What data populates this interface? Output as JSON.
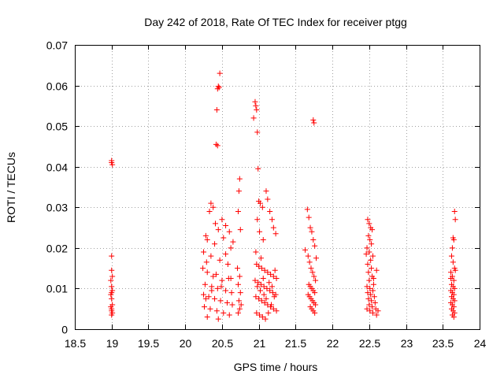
{
  "chart_data": {
    "type": "scatter",
    "title": "Day 242 of 2018, Rate Of TEC Index for receiver ptgg",
    "xlabel": "GPS time / hours",
    "ylabel": "ROTI / TECUs",
    "xlim": [
      18.5,
      24
    ],
    "ylim": [
      0,
      0.07
    ],
    "xticks": [
      "18.5",
      "19",
      "19.5",
      "20",
      "20.5",
      "21",
      "21.5",
      "22",
      "22.5",
      "23",
      "23.5",
      "24"
    ],
    "yticks": [
      "0",
      "0.01",
      "0.02",
      "0.03",
      "0.04",
      "0.05",
      "0.06",
      "0.07"
    ],
    "grid": true,
    "marker": "+",
    "color": "#ff0000",
    "points": [
      [
        19.0,
        0.0415
      ],
      [
        19.0,
        0.041
      ],
      [
        19.01,
        0.0405
      ],
      [
        19.0,
        0.018
      ],
      [
        19.0,
        0.0145
      ],
      [
        19.01,
        0.013
      ],
      [
        18.99,
        0.012
      ],
      [
        19.0,
        0.0105
      ],
      [
        19.01,
        0.0095
      ],
      [
        19.0,
        0.009
      ],
      [
        18.99,
        0.0085
      ],
      [
        19.0,
        0.0075
      ],
      [
        19.01,
        0.006
      ],
      [
        18.99,
        0.0055
      ],
      [
        19.0,
        0.005
      ],
      [
        19.0,
        0.0045
      ],
      [
        19.01,
        0.004
      ],
      [
        19.0,
        0.0035
      ],
      [
        20.47,
        0.063
      ],
      [
        20.45,
        0.0598
      ],
      [
        20.46,
        0.0595
      ],
      [
        20.44,
        0.0592
      ],
      [
        20.43,
        0.054
      ],
      [
        20.42,
        0.0455
      ],
      [
        20.44,
        0.0452
      ],
      [
        20.35,
        0.031
      ],
      [
        20.38,
        0.03
      ],
      [
        20.33,
        0.029
      ],
      [
        20.5,
        0.027
      ],
      [
        20.55,
        0.0255
      ],
      [
        20.45,
        0.0245
      ],
      [
        20.6,
        0.024
      ],
      [
        20.28,
        0.023
      ],
      [
        20.3,
        0.022
      ],
      [
        20.4,
        0.021
      ],
      [
        20.52,
        0.0225
      ],
      [
        20.62,
        0.02
      ],
      [
        20.25,
        0.019
      ],
      [
        20.35,
        0.018
      ],
      [
        20.47,
        0.017
      ],
      [
        20.58,
        0.016
      ],
      [
        20.24,
        0.015
      ],
      [
        20.3,
        0.014
      ],
      [
        20.42,
        0.0135
      ],
      [
        20.5,
        0.012
      ],
      [
        20.62,
        0.0125
      ],
      [
        20.27,
        0.011
      ],
      [
        20.36,
        0.0105
      ],
      [
        20.44,
        0.01
      ],
      [
        20.55,
        0.0095
      ],
      [
        20.63,
        0.009
      ],
      [
        20.25,
        0.0085
      ],
      [
        20.32,
        0.008
      ],
      [
        20.4,
        0.0075
      ],
      [
        20.48,
        0.007
      ],
      [
        20.57,
        0.0065
      ],
      [
        20.64,
        0.006
      ],
      [
        20.26,
        0.0055
      ],
      [
        20.34,
        0.005
      ],
      [
        20.43,
        0.0045
      ],
      [
        20.52,
        0.004
      ],
      [
        20.6,
        0.0035
      ],
      [
        20.3,
        0.003
      ],
      [
        20.45,
        0.0025
      ],
      [
        20.38,
        0.013
      ],
      [
        20.29,
        0.0165
      ],
      [
        20.55,
        0.0185
      ],
      [
        20.65,
        0.0215
      ],
      [
        20.41,
        0.026
      ],
      [
        20.36,
        0.0095
      ],
      [
        20.28,
        0.0075
      ],
      [
        20.49,
        0.0105
      ],
      [
        20.59,
        0.0125
      ],
      [
        20.74,
        0.037
      ],
      [
        20.73,
        0.034
      ],
      [
        20.72,
        0.029
      ],
      [
        20.75,
        0.0245
      ],
      [
        20.71,
        0.015
      ],
      [
        20.74,
        0.013
      ],
      [
        20.72,
        0.011
      ],
      [
        20.75,
        0.009
      ],
      [
        20.73,
        0.007
      ],
      [
        20.74,
        0.005
      ],
      [
        20.72,
        0.004
      ],
      [
        20.76,
        0.006
      ],
      [
        20.95,
        0.056
      ],
      [
        20.96,
        0.055
      ],
      [
        20.97,
        0.054
      ],
      [
        20.93,
        0.052
      ],
      [
        20.98,
        0.0485
      ],
      [
        20.99,
        0.0395
      ],
      [
        21.0,
        0.0315
      ],
      [
        21.02,
        0.031
      ],
      [
        21.05,
        0.03
      ],
      [
        21.1,
        0.034
      ],
      [
        21.12,
        0.032
      ],
      [
        21.15,
        0.029
      ],
      [
        21.18,
        0.027
      ],
      [
        21.2,
        0.025
      ],
      [
        21.23,
        0.0235
      ],
      [
        20.98,
        0.027
      ],
      [
        21.01,
        0.024
      ],
      [
        21.06,
        0.022
      ],
      [
        20.96,
        0.019
      ],
      [
        21.03,
        0.0175
      ],
      [
        20.97,
        0.016
      ],
      [
        21.0,
        0.0155
      ],
      [
        21.04,
        0.015
      ],
      [
        21.08,
        0.0145
      ],
      [
        21.12,
        0.014
      ],
      [
        21.16,
        0.0135
      ],
      [
        21.2,
        0.013
      ],
      [
        21.24,
        0.0125
      ],
      [
        20.95,
        0.012
      ],
      [
        20.99,
        0.0115
      ],
      [
        21.03,
        0.011
      ],
      [
        21.07,
        0.0105
      ],
      [
        21.11,
        0.01
      ],
      [
        21.15,
        0.0095
      ],
      [
        21.19,
        0.009
      ],
      [
        21.23,
        0.0085
      ],
      [
        20.96,
        0.008
      ],
      [
        21.0,
        0.0075
      ],
      [
        21.04,
        0.007
      ],
      [
        21.08,
        0.0065
      ],
      [
        21.12,
        0.006
      ],
      [
        21.16,
        0.0055
      ],
      [
        21.2,
        0.005
      ],
      [
        21.24,
        0.0045
      ],
      [
        20.97,
        0.004
      ],
      [
        21.01,
        0.0035
      ],
      [
        21.05,
        0.003
      ],
      [
        21.09,
        0.0025
      ],
      [
        21.13,
        0.004
      ],
      [
        21.17,
        0.006
      ],
      [
        21.21,
        0.008
      ],
      [
        21.06,
        0.0125
      ],
      [
        21.14,
        0.0115
      ],
      [
        21.02,
        0.0095
      ],
      [
        21.1,
        0.0075
      ],
      [
        21.18,
        0.0105
      ],
      [
        21.22,
        0.0145
      ],
      [
        20.98,
        0.0105
      ],
      [
        21.07,
        0.0085
      ],
      [
        21.74,
        0.0515
      ],
      [
        21.75,
        0.0508
      ],
      [
        21.66,
        0.0295
      ],
      [
        21.68,
        0.0275
      ],
      [
        21.7,
        0.025
      ],
      [
        21.72,
        0.024
      ],
      [
        21.74,
        0.022
      ],
      [
        21.76,
        0.0205
      ],
      [
        21.67,
        0.018
      ],
      [
        21.69,
        0.0165
      ],
      [
        21.71,
        0.015
      ],
      [
        21.73,
        0.014
      ],
      [
        21.75,
        0.013
      ],
      [
        21.77,
        0.012
      ],
      [
        21.68,
        0.011
      ],
      [
        21.7,
        0.0105
      ],
      [
        21.72,
        0.01
      ],
      [
        21.74,
        0.0095
      ],
      [
        21.76,
        0.009
      ],
      [
        21.67,
        0.0085
      ],
      [
        21.69,
        0.008
      ],
      [
        21.71,
        0.0075
      ],
      [
        21.73,
        0.007
      ],
      [
        21.75,
        0.0065
      ],
      [
        21.77,
        0.006
      ],
      [
        21.7,
        0.0055
      ],
      [
        21.72,
        0.005
      ],
      [
        21.74,
        0.0045
      ],
      [
        21.76,
        0.004
      ],
      [
        21.78,
        0.0175
      ],
      [
        21.63,
        0.0195
      ],
      [
        22.48,
        0.027
      ],
      [
        22.5,
        0.026
      ],
      [
        22.52,
        0.025
      ],
      [
        22.54,
        0.0245
      ],
      [
        22.49,
        0.023
      ],
      [
        22.51,
        0.022
      ],
      [
        22.53,
        0.021
      ],
      [
        22.47,
        0.02
      ],
      [
        22.5,
        0.019
      ],
      [
        22.55,
        0.018
      ],
      [
        22.52,
        0.017
      ],
      [
        22.48,
        0.016
      ],
      [
        22.53,
        0.015
      ],
      [
        22.49,
        0.014
      ],
      [
        22.54,
        0.013
      ],
      [
        22.5,
        0.012
      ],
      [
        22.56,
        0.011
      ],
      [
        22.47,
        0.0105
      ],
      [
        22.51,
        0.01
      ],
      [
        22.55,
        0.0095
      ],
      [
        22.48,
        0.009
      ],
      [
        22.52,
        0.0085
      ],
      [
        22.57,
        0.008
      ],
      [
        22.49,
        0.0075
      ],
      [
        22.53,
        0.007
      ],
      [
        22.58,
        0.0065
      ],
      [
        22.5,
        0.006
      ],
      [
        22.54,
        0.0055
      ],
      [
        22.59,
        0.005
      ],
      [
        22.51,
        0.0045
      ],
      [
        22.55,
        0.004
      ],
      [
        22.6,
        0.0035
      ],
      [
        22.47,
        0.005
      ],
      [
        22.62,
        0.0045
      ],
      [
        22.56,
        0.0125
      ],
      [
        22.6,
        0.0145
      ],
      [
        22.46,
        0.0185
      ],
      [
        23.66,
        0.029
      ],
      [
        23.67,
        0.027
      ],
      [
        23.64,
        0.0225
      ],
      [
        23.65,
        0.022
      ],
      [
        23.63,
        0.02
      ],
      [
        23.62,
        0.018
      ],
      [
        23.64,
        0.0165
      ],
      [
        23.66,
        0.015
      ],
      [
        23.61,
        0.014
      ],
      [
        23.63,
        0.013
      ],
      [
        23.65,
        0.012
      ],
      [
        23.62,
        0.011
      ],
      [
        23.64,
        0.0105
      ],
      [
        23.66,
        0.01
      ],
      [
        23.61,
        0.0095
      ],
      [
        23.63,
        0.009
      ],
      [
        23.65,
        0.0085
      ],
      [
        23.62,
        0.008
      ],
      [
        23.64,
        0.0075
      ],
      [
        23.66,
        0.007
      ],
      [
        23.61,
        0.0065
      ],
      [
        23.63,
        0.006
      ],
      [
        23.65,
        0.0055
      ],
      [
        23.62,
        0.005
      ],
      [
        23.64,
        0.0045
      ],
      [
        23.66,
        0.004
      ],
      [
        23.63,
        0.0035
      ],
      [
        23.65,
        0.003
      ],
      [
        23.61,
        0.0125
      ],
      [
        23.67,
        0.0145
      ]
    ]
  }
}
